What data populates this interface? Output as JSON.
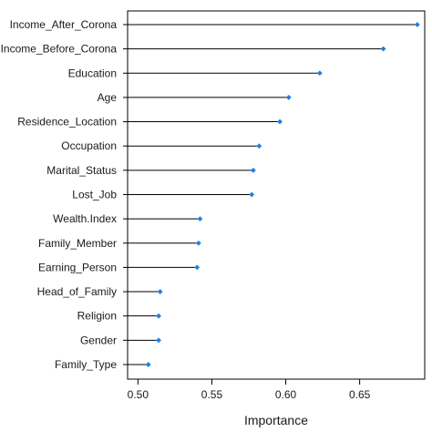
{
  "chart_data": {
    "type": "dot",
    "title": "",
    "xlabel": "Importance",
    "ylabel": "",
    "xlim": [
      0.493,
      0.694
    ],
    "xticks": [
      0.5,
      0.55,
      0.6,
      0.65
    ],
    "xtick_labels": [
      "0.50",
      "0.55",
      "0.60",
      "0.65"
    ],
    "grid": false,
    "legend": "none",
    "point_color": "#1e7fe6",
    "line_color": "#000000",
    "categories": [
      "Income_After_Corona",
      "Income_Before_Corona",
      "Education",
      "Age",
      "Residence_Location",
      "Occupation",
      "Marital_Status",
      "Lost_Job",
      "Wealth.Index",
      "Family_Member",
      "Earning_Person",
      "Head_of_Family",
      "Religion",
      "Gender",
      "Family_Type"
    ],
    "values": [
      0.689,
      0.666,
      0.623,
      0.602,
      0.596,
      0.582,
      0.578,
      0.577,
      0.542,
      0.541,
      0.54,
      0.515,
      0.514,
      0.514,
      0.507
    ]
  }
}
